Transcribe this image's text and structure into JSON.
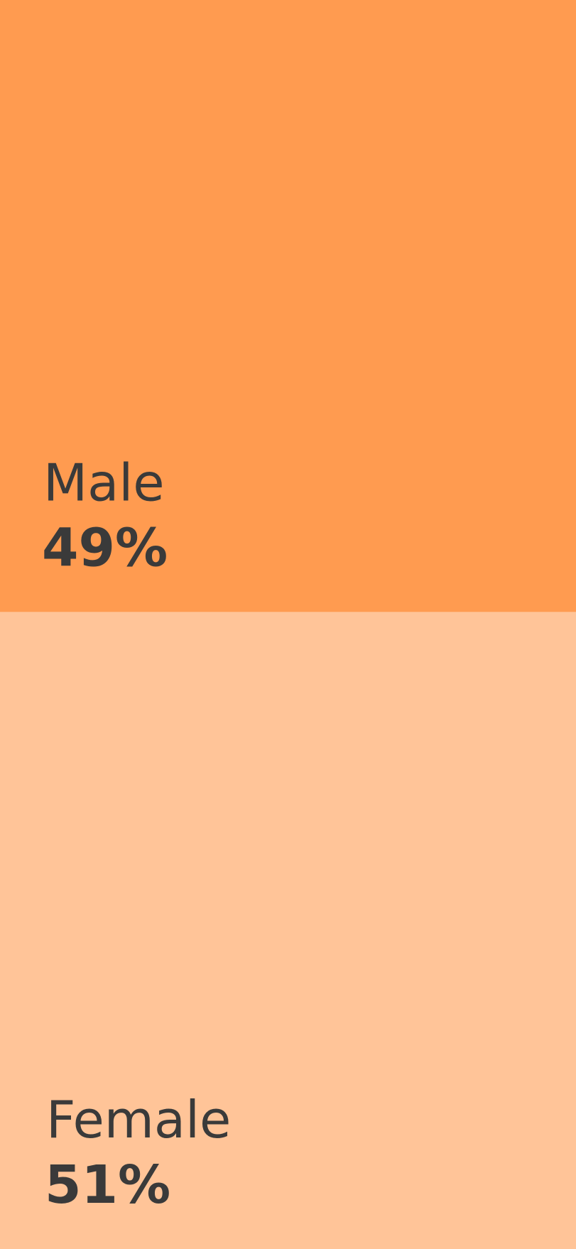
{
  "chart_data": {
    "type": "bar",
    "categories": [
      "Male",
      "Female"
    ],
    "values": [
      49,
      51
    ],
    "value_labels": [
      "49%",
      "51%"
    ],
    "colors": [
      "#ff9b50",
      "#ffc498"
    ]
  }
}
